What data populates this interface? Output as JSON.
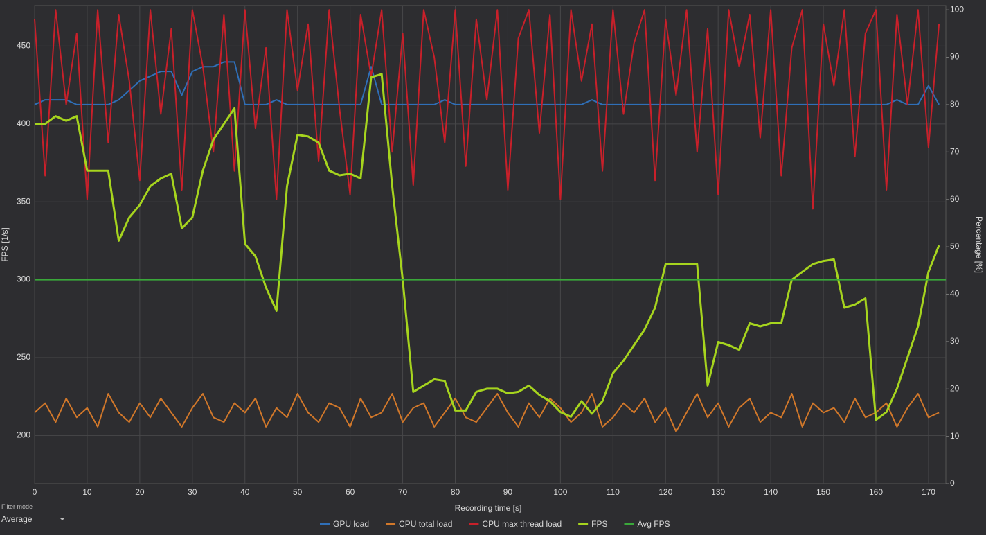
{
  "chart_data": {
    "type": "line",
    "xlabel": "Recording time [s]",
    "ylabel": "FPS [1/s]",
    "y2label": "Percentage [%]",
    "x": [
      0,
      2,
      4,
      6,
      8,
      10,
      12,
      14,
      16,
      18,
      20,
      22,
      24,
      26,
      28,
      30,
      32,
      34,
      36,
      38,
      40,
      42,
      44,
      46,
      48,
      50,
      52,
      54,
      56,
      58,
      60,
      62,
      64,
      66,
      68,
      70,
      72,
      74,
      76,
      78,
      80,
      82,
      84,
      86,
      88,
      90,
      92,
      94,
      96,
      98,
      100,
      102,
      104,
      106,
      108,
      110,
      112,
      114,
      116,
      118,
      120,
      122,
      124,
      126,
      128,
      130,
      132,
      134,
      136,
      138,
      140,
      142,
      144,
      146,
      148,
      150,
      152,
      154,
      156,
      158,
      160,
      162,
      164,
      166,
      168,
      170,
      172
    ],
    "xlim": [
      0,
      173.3
    ],
    "xticks": [
      0,
      10,
      20,
      30,
      40,
      50,
      60,
      70,
      80,
      90,
      100,
      110,
      120,
      130,
      140,
      150,
      160,
      170
    ],
    "ylim": [
      169,
      476
    ],
    "yticks": [
      200,
      250,
      300,
      350,
      400,
      450
    ],
    "y2lim": [
      0,
      100.9
    ],
    "y2ticks": [
      0,
      10,
      20,
      30,
      40,
      50,
      60,
      70,
      80,
      90,
      100
    ],
    "grid": true,
    "legend": "bottom",
    "series": [
      {
        "name": "GPU load",
        "color": "#2f6fb8",
        "axis": "y2",
        "values": [
          80,
          81,
          81,
          81,
          80,
          80,
          80,
          80,
          81,
          83,
          85,
          86,
          87,
          87,
          82,
          87,
          88,
          88,
          89,
          89,
          80,
          80,
          80,
          81,
          80,
          80,
          80,
          80,
          80,
          80,
          80,
          80,
          88,
          80,
          80,
          80,
          80,
          80,
          80,
          81,
          80,
          80,
          80,
          80,
          80,
          80,
          80,
          80,
          80,
          80,
          80,
          80,
          80,
          81,
          80,
          80,
          80,
          80,
          80,
          80,
          80,
          80,
          80,
          80,
          80,
          80,
          80,
          80,
          80,
          80,
          80,
          80,
          80,
          80,
          80,
          80,
          80,
          80,
          80,
          80,
          80,
          80,
          81,
          80,
          80,
          84,
          80
        ]
      },
      {
        "name": "CPU total load",
        "color": "#d2782a",
        "axis": "y2",
        "values": [
          15,
          17,
          13,
          18,
          14,
          16,
          12,
          19,
          15,
          13,
          17,
          14,
          18,
          15,
          12,
          16,
          19,
          14,
          13,
          17,
          15,
          18,
          12,
          16,
          14,
          19,
          15,
          13,
          17,
          16,
          12,
          18,
          14,
          15,
          19,
          13,
          16,
          17,
          12,
          15,
          18,
          14,
          13,
          16,
          19,
          15,
          12,
          17,
          14,
          18,
          16,
          13,
          15,
          19,
          12,
          14,
          17,
          15,
          18,
          13,
          16,
          11,
          15,
          19,
          14,
          17,
          12,
          16,
          18,
          13,
          15,
          14,
          19,
          12,
          17,
          15,
          16,
          13,
          18,
          14,
          15,
          17,
          12,
          16,
          19,
          14,
          15
        ]
      },
      {
        "name": "CPU max thread load",
        "color": "#c8202a",
        "axis": "y2",
        "values": [
          98,
          65,
          100,
          80,
          95,
          60,
          100,
          72,
          99,
          85,
          64,
          100,
          78,
          96,
          62,
          100,
          88,
          70,
          99,
          66,
          100,
          75,
          92,
          60,
          100,
          83,
          97,
          68,
          100,
          79,
          61,
          99,
          86,
          100,
          70,
          95,
          63,
          100,
          90,
          72,
          100,
          67,
          98,
          81,
          100,
          62,
          94,
          100,
          74,
          99,
          60,
          100,
          85,
          97,
          66,
          100,
          78,
          93,
          100,
          64,
          98,
          82,
          100,
          70,
          96,
          61,
          100,
          88,
          99,
          73,
          100,
          65,
          92,
          100,
          58,
          97,
          84,
          100,
          69,
          95,
          100,
          62,
          99,
          80,
          100,
          71,
          97
        ]
      },
      {
        "name": "FPS",
        "color": "#a6d41e",
        "values": [
          400,
          400,
          405,
          402,
          405,
          370,
          370,
          370,
          325,
          340,
          348,
          360,
          365,
          368,
          333,
          340,
          370,
          390,
          400,
          410,
          323,
          315,
          295,
          280,
          360,
          393,
          392,
          388,
          370,
          367,
          368,
          365,
          430,
          432,
          360,
          300,
          228,
          232,
          236,
          235,
          216,
          216,
          228,
          230,
          230,
          227,
          228,
          232,
          226,
          222,
          215,
          212,
          222,
          214,
          222,
          240,
          248,
          258,
          268,
          282,
          310,
          310,
          310,
          310,
          232,
          260,
          258,
          255,
          272,
          270,
          272,
          272,
          300,
          305,
          310,
          312,
          313,
          282,
          284,
          288,
          210,
          215,
          230,
          250,
          270,
          305,
          322
        ]
      },
      {
        "name": "Avg FPS",
        "color": "#3aa83a",
        "value": 300
      }
    ]
  },
  "filter_mode": {
    "label": "Filter mode",
    "value": "Average"
  }
}
